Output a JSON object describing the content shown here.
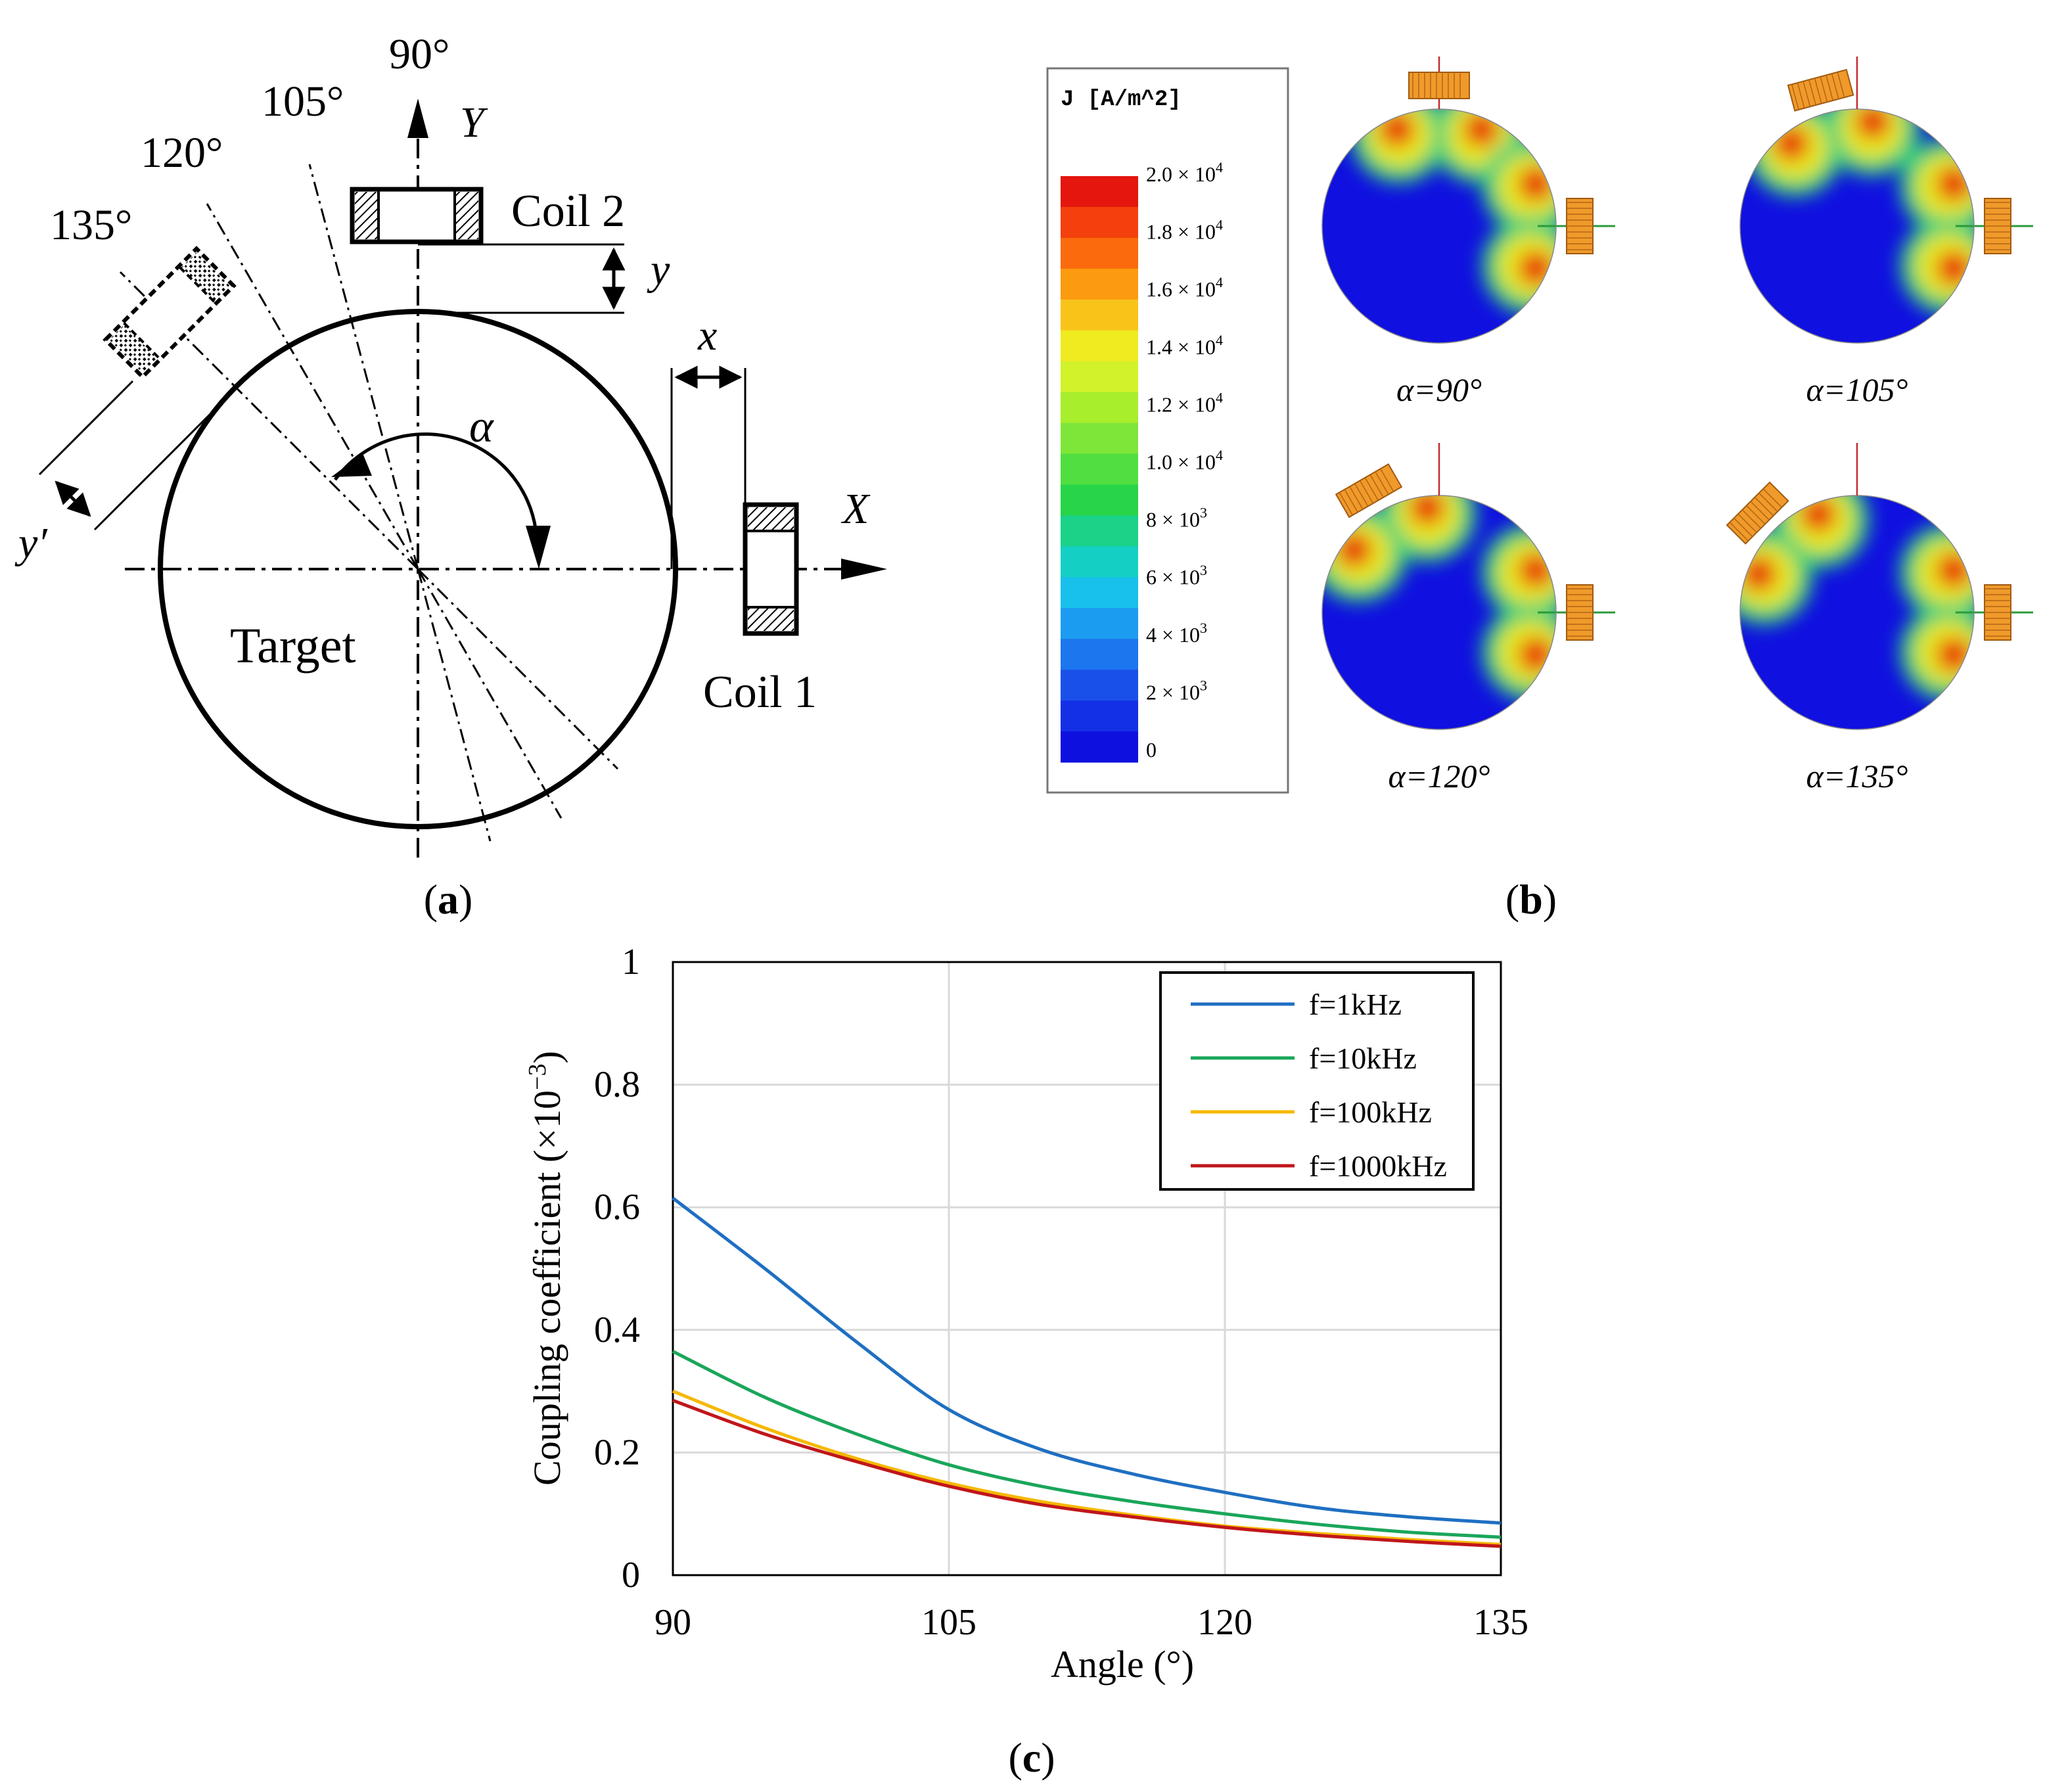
{
  "panel_a": {
    "label": "a",
    "angle_labels": [
      "90°",
      "105°",
      "120°",
      "135°"
    ],
    "axis_y": "Y",
    "axis_x": "X",
    "coil2": "Coil 2",
    "coil1": "Coil 1",
    "target": "Target",
    "dim_y": "y",
    "dim_x": "x",
    "dim_y_prime": "y′",
    "alpha": "α"
  },
  "panel_b": {
    "label": "b",
    "legend_title": "J [A/m^2]",
    "scale_labels": [
      {
        "m": "2.0 × 10",
        "e": "4"
      },
      {
        "m": "1.8 × 10",
        "e": "4"
      },
      {
        "m": "1.6 × 10",
        "e": "4"
      },
      {
        "m": "1.4 × 10",
        "e": "4"
      },
      {
        "m": "1.2 × 10",
        "e": "4"
      },
      {
        "m": "1.0 × 10",
        "e": "4"
      },
      {
        "m": "8 × 10",
        "e": "3"
      },
      {
        "m": "6 × 10",
        "e": "3"
      },
      {
        "m": "4 × 10",
        "e": "3"
      },
      {
        "m": "2 × 10",
        "e": "3"
      },
      {
        "m": "0",
        "e": ""
      }
    ],
    "scale_colors": [
      "#e4160e",
      "#f4400c",
      "#fb6a0c",
      "#fc9a10",
      "#f8c41a",
      "#f0ea20",
      "#d2f22a",
      "#a8ee2c",
      "#7ee638",
      "#50de40",
      "#28d448",
      "#1ad288",
      "#14d0c4",
      "#18c0ec",
      "#1c9cf0",
      "#1c76ee",
      "#1a50ea",
      "#1430e6",
      "#0e10e0"
    ],
    "sims": [
      {
        "label": "α=90°",
        "angle": 90
      },
      {
        "label": "α=105°",
        "angle": 105
      },
      {
        "label": "α=120°",
        "angle": 120
      },
      {
        "label": "α=135°",
        "angle": 135
      }
    ]
  },
  "panel_c": {
    "label": "c",
    "chart_data": {
      "type": "line",
      "xlabel": "Angle (°)",
      "ylabel": "Coupling coefficient (×10",
      "ylabel_exp": "−3",
      "ylabel_end": ")",
      "xlim": [
        90,
        135
      ],
      "ylim": [
        0,
        1
      ],
      "xticks": [
        90,
        105,
        120,
        135
      ],
      "yticks": [
        0,
        0.2,
        0.4,
        0.6,
        0.8,
        1
      ],
      "ytick_labels": [
        "0",
        "0.2",
        "0.4",
        "0.6",
        "0.8",
        "1"
      ],
      "grid": true,
      "legend_position": "top-right",
      "series": [
        {
          "name": "f=1kHz",
          "color": "#1f6fc1",
          "x": [
            90,
            95,
            100,
            105,
            110,
            115,
            120,
            125,
            130,
            135
          ],
          "y": [
            0.615,
            0.5,
            0.38,
            0.27,
            0.205,
            0.165,
            0.135,
            0.11,
            0.095,
            0.085
          ]
        },
        {
          "name": "f=10kHz",
          "color": "#1aa65a",
          "x": [
            90,
            95,
            100,
            105,
            110,
            115,
            120,
            125,
            130,
            135
          ],
          "y": [
            0.365,
            0.29,
            0.23,
            0.18,
            0.145,
            0.12,
            0.1,
            0.083,
            0.07,
            0.062
          ]
        },
        {
          "name": "f=100kHz",
          "color": "#f5b800",
          "x": [
            90,
            95,
            100,
            105,
            110,
            115,
            120,
            125,
            130,
            135
          ],
          "y": [
            0.3,
            0.24,
            0.19,
            0.15,
            0.12,
            0.098,
            0.08,
            0.068,
            0.058,
            0.05
          ]
        },
        {
          "name": "f=1000kHz",
          "color": "#c0161b",
          "x": [
            90,
            95,
            100,
            105,
            110,
            115,
            120,
            125,
            130,
            135
          ],
          "y": [
            0.285,
            0.23,
            0.185,
            0.145,
            0.115,
            0.095,
            0.078,
            0.065,
            0.055,
            0.047
          ]
        }
      ]
    }
  }
}
